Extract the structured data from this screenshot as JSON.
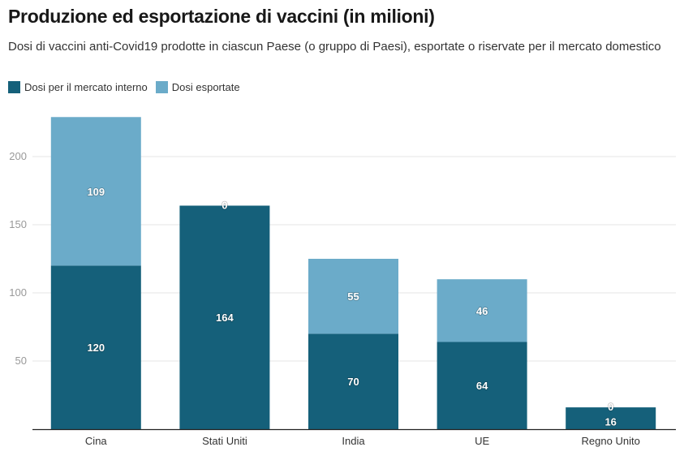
{
  "chart_data": {
    "type": "bar",
    "stacked": true,
    "title": "Produzione ed esportazione di vaccini (in milioni)",
    "subtitle": "Dosi di vaccini anti-Covid19 prodotte in ciascun Paese (o gruppo di Paesi), esportate o riservate per il mercato domestico",
    "categories": [
      "Cina",
      "Stati Uniti",
      "India",
      "UE",
      "Regno Unito"
    ],
    "series": [
      {
        "name": "Dosi per il mercato interno",
        "color": "#15607A",
        "values": [
          120,
          164,
          70,
          64,
          16
        ]
      },
      {
        "name": "Dosi esportate",
        "color": "#6BABC9",
        "values": [
          109,
          0,
          55,
          46,
          0
        ]
      }
    ],
    "xlabel": "",
    "ylabel": "",
    "ylim": [
      0,
      230
    ],
    "yticks": [
      50,
      100,
      150,
      200
    ],
    "grid": true,
    "legend": "top-left"
  }
}
